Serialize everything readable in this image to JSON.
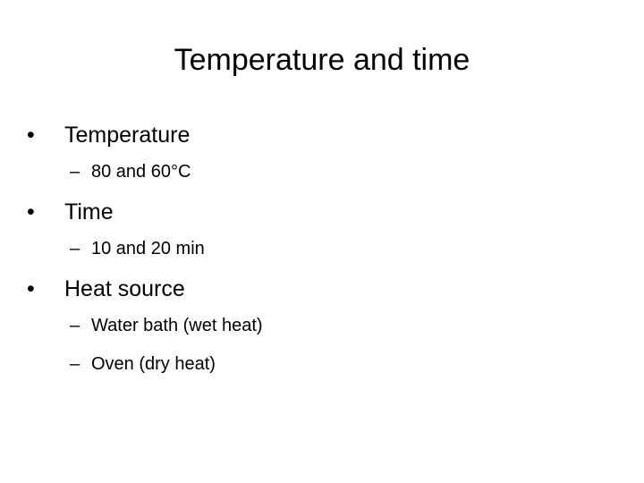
{
  "title": "Temperature and time",
  "bullets": [
    {
      "text": "Temperature",
      "sub": [
        "80 and 60°C"
      ]
    },
    {
      "text": "Time",
      "sub": [
        "10 and 20 min"
      ]
    },
    {
      "text": "Heat source",
      "sub": [
        "Water bath (wet heat)",
        "Oven (dry heat)"
      ]
    }
  ]
}
